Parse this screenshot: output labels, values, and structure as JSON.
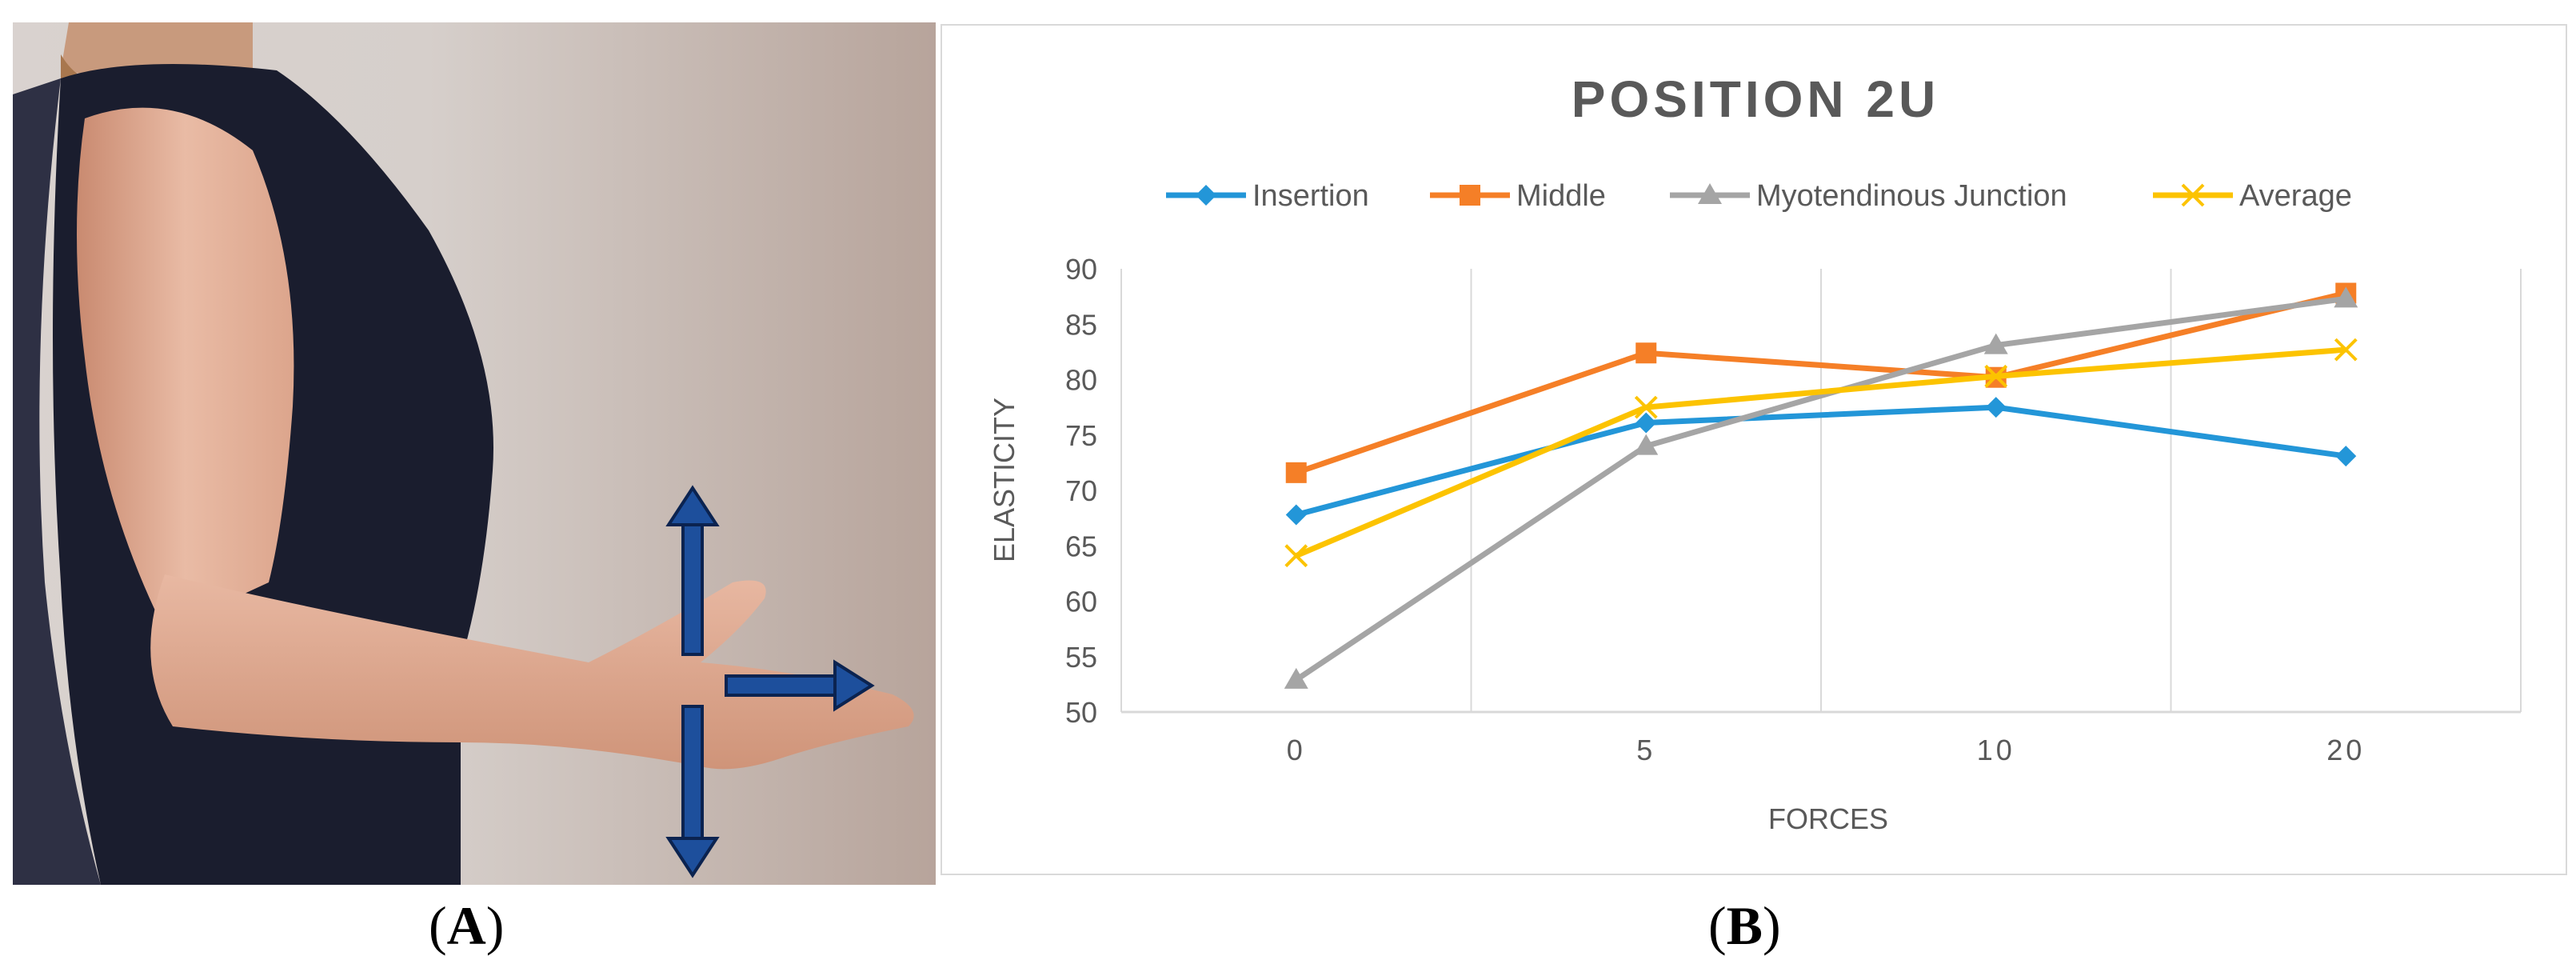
{
  "panel_labels": {
    "a": "A",
    "b": "B"
  },
  "colors": {
    "insertion": "#2396d8",
    "middle": "#f57f27",
    "myotendinous": "#a5a5a5",
    "average": "#fcc300",
    "arrow_fill": "#1d4f9c",
    "arrow_stroke": "#0b2350"
  },
  "photo": {
    "description_icon": "forearm-arm-photo",
    "arrows": [
      "up-arrow-icon",
      "down-arrow-icon",
      "right-arrow-icon"
    ]
  },
  "chart_data": {
    "type": "line",
    "title": "POSITION 2U",
    "xlabel": "FORCES",
    "ylabel": "ELASTICITY",
    "categories": [
      "0",
      "5",
      "10",
      "20"
    ],
    "ylim": [
      50,
      90
    ],
    "yticks": [
      "50",
      "55",
      "60",
      "65",
      "70",
      "75",
      "80",
      "85",
      "90"
    ],
    "grid": "vertical",
    "legend_position": "top",
    "series": [
      {
        "name": "Insertion",
        "marker": "diamond",
        "values": [
          67.8,
          76.1,
          77.5,
          73.1
        ]
      },
      {
        "name": "Middle",
        "marker": "square",
        "values": [
          71.6,
          82.4,
          80.2,
          87.8
        ]
      },
      {
        "name": "Myotendinous Junction",
        "marker": "triangle",
        "values": [
          52.9,
          74.0,
          83.1,
          87.3
        ]
      },
      {
        "name": "Average",
        "marker": "x",
        "values": [
          64.1,
          77.5,
          80.3,
          82.7
        ]
      }
    ]
  }
}
